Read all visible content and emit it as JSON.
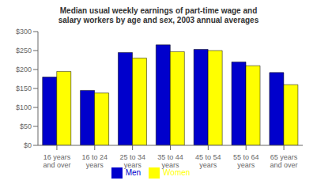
{
  "chart_data": {
    "type": "bar",
    "title": "Median usual weekly earnings of part-time wage and\nsalary workers by age and sex, 2003 annual averages",
    "categories": [
      "16 years\nand over",
      "16 to 24\nyears",
      "25 to 34\nyears",
      "35 to 44\nyears",
      "45 to 54\nyears",
      "55 to 64\nyears",
      "65 years\nand over"
    ],
    "series": [
      {
        "name": "Men",
        "color": "#0000CC",
        "values": [
          180,
          145,
          245,
          265,
          253,
          220,
          192
        ]
      },
      {
        "name": "Women",
        "color": "#FFFF00",
        "values": [
          195,
          138,
          230,
          247,
          250,
          210,
          160
        ]
      }
    ],
    "ylim": [
      0,
      300
    ],
    "yticks": [
      {
        "value": 0,
        "label": "$0"
      },
      {
        "value": 50,
        "label": "$50"
      },
      {
        "value": 100,
        "label": "$100"
      },
      {
        "value": 150,
        "label": "$150"
      },
      {
        "value": 200,
        "label": "$200"
      },
      {
        "value": 250,
        "label": "$250"
      },
      {
        "value": 300,
        "label": "$300"
      }
    ],
    "grid": false,
    "legend": "bottom"
  }
}
